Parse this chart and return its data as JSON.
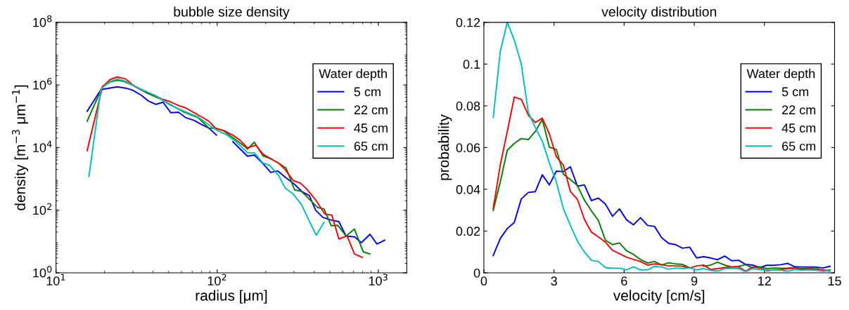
{
  "chart_data": [
    {
      "type": "line",
      "title": "bubble size density",
      "xlabel": "radius [μm]",
      "ylabel": "density [m$^{−3}$ μm$^{−1}$]",
      "legend_title": "Water depth",
      "log": "xy",
      "legend": "top right",
      "grid": false,
      "xlim": [
        10,
        1500
      ],
      "xticks": [
        {
          "value": 10,
          "label": "10$^{1}$"
        },
        {
          "value": 100,
          "label": "10$^{2}$"
        },
        {
          "value": 1000,
          "label": "10$^{3}$"
        }
      ],
      "ylim": [
        1,
        100000000
      ],
      "yticks": [
        {
          "value": 1,
          "label": "10$^{0}$"
        },
        {
          "value": 100,
          "label": "10$^{2}$"
        },
        {
          "value": 10000,
          "label": "10$^{4}$"
        },
        {
          "value": 1000000,
          "label": "10$^{6}$"
        },
        {
          "value": 100000000,
          "label": "10$^{8}$"
        }
      ],
      "series": [
        {
          "name": "5 cm",
          "color": "#0000ff",
          "x": [
            15.6,
            19.0,
            24.0,
            27.1,
            29.9,
            33.8,
            37.3,
            41.7,
            46.1,
            51.5,
            57.5,
            63.6,
            71.8,
            80.2,
            88.7,
            99,
            110,
            125,
            154,
            170,
            192,
            215,
            238,
            268,
            302,
            334,
            373,
            408,
            452,
            510,
            569,
            630,
            711,
            785,
            887,
            980,
            1094
          ],
          "values": [
            145000,
            710000,
            870000,
            790000,
            680000,
            470000,
            310000,
            240000,
            280000,
            130000,
            135000,
            91000,
            74000,
            54000,
            42000,
            25000,
            null,
            15500,
            5300,
            5800,
            3100,
            1600,
            1800,
            1070,
            670,
            400,
            293,
            100,
            59,
            48,
            43,
            15,
            14,
            9.2,
            17,
            8.3,
            11
          ]
        },
        {
          "name": "22 cm",
          "color": "#008000",
          "x": [
            15.6,
            19.4,
            21.7,
            24.0,
            26.5,
            29.9,
            36.6,
            44.7,
            50.9,
            62.3,
            76.0,
            88.7,
            98,
            110,
            128,
            150,
            154,
            170,
            192,
            217,
            240,
            268,
            302,
            334,
            376,
            420,
            460,
            510,
            560,
            630,
            711,
            805,
            887
          ],
          "values": [
            70000,
            870000,
            1260000,
            1400000,
            1300000,
            970000,
            550000,
            350000,
            240000,
            136000,
            91000,
            42000,
            41000,
            34000,
            19000,
            10300,
            8900,
            14800,
            5500,
            4300,
            3200,
            2200,
            445,
            400,
            215,
            122,
            110,
            32,
            33,
            15,
            25,
            4.7,
            4.0
          ]
        },
        {
          "name": "45 cm",
          "color": "#ff0000",
          "x": [
            15.6,
            19.4,
            21.7,
            24.0,
            27.1,
            29.9,
            33.1,
            36.6,
            41.3,
            45.6,
            50.9,
            57.5,
            63.6,
            71.8,
            80.2,
            88.7,
            98,
            110,
            125,
            139,
            154,
            174,
            192,
            217,
            240,
            264,
            297,
            328,
            363,
            408,
            465,
            515,
            569,
            640,
            711,
            795
          ],
          "values": [
            8000,
            870000,
            1500000,
            1800000,
            1550000,
            1000000,
            740000,
            580000,
            450000,
            350000,
            295000,
            220000,
            186000,
            130000,
            95000,
            70000,
            41000,
            35000,
            25000,
            17000,
            9800,
            12000,
            6200,
            4300,
            3200,
            2000,
            870,
            740,
            450,
            215,
            76,
            69,
            12,
            15,
            4.0,
            3.1
          ]
        },
        {
          "name": "65 cm",
          "color": "#00bfbf",
          "x": [
            16.0,
            19.0,
            21.4,
            24.0,
            27.1,
            29.9,
            34.1,
            41.7,
            50.9,
            62.3,
            76,
            87.7,
            100,
            114,
            128,
            150,
            154,
            170,
            192,
            212,
            240,
            264,
            297,
            334,
            369,
            412,
            460
          ],
          "values": [
            1200,
            740000,
            1260000,
            1550000,
            1300000,
            970000,
            710000,
            450000,
            230000,
            144000,
            95000,
            56000,
            35000,
            26000,
            17000,
            8000,
            6800,
            6800,
            3200,
            2700,
            1300,
            515,
            325,
            149,
            50,
            16,
            41
          ]
        }
      ]
    },
    {
      "type": "line",
      "title": "velocity distribution",
      "xlabel": "velocity [cm/s]",
      "ylabel": "probability",
      "legend_title": "Water depth",
      "legend": "top right",
      "grid": false,
      "xlim": [
        0,
        15
      ],
      "xticks": [
        0,
        3,
        6,
        9,
        12,
        15
      ],
      "ylim": [
        0,
        0.12
      ],
      "yticks": [
        0,
        0.02,
        0.04,
        0.06,
        0.08,
        0.1,
        0.12
      ],
      "x": [
        0.4,
        0.7,
        1.0,
        1.3,
        1.6,
        1.9,
        2.2,
        2.5,
        2.8,
        3.1,
        3.4,
        3.7,
        4.0,
        4.3,
        4.6,
        4.9,
        5.2,
        5.5,
        5.8,
        6.1,
        6.4,
        6.7,
        7.0,
        7.3,
        7.6,
        7.9,
        8.2,
        8.5,
        8.8,
        9.1,
        9.4,
        9.7,
        10.0,
        10.3,
        10.6,
        10.9,
        11.2,
        11.5,
        11.8,
        12.1,
        12.4,
        12.7,
        13.0,
        13.3,
        13.6,
        13.9,
        14.2,
        14.5,
        14.8
      ],
      "series": [
        {
          "name": "5 cm",
          "color": "#0000ff",
          "values": [
            0.0083,
            0.0164,
            0.0212,
            0.0241,
            0.0354,
            0.0385,
            0.0389,
            0.047,
            0.0421,
            0.0487,
            0.0485,
            0.0508,
            0.0415,
            0.0421,
            0.0346,
            0.0358,
            0.0329,
            0.0271,
            0.0306,
            0.0254,
            0.023,
            0.0264,
            0.0227,
            0.0222,
            0.0169,
            0.0141,
            0.0135,
            0.0118,
            0.0123,
            0.0071,
            0.0077,
            0.0071,
            0.0063,
            0.008,
            0.0058,
            0.006,
            0.004,
            0.0037,
            0.0025,
            0.0036,
            0.0036,
            0.0039,
            0.0045,
            0.0029,
            0.0028,
            0.0028,
            0.0028,
            0.0023,
            0.0031
          ]
        },
        {
          "name": "22 cm",
          "color": "#008000",
          "values": [
            0.0299,
            0.0435,
            0.0587,
            0.062,
            0.0643,
            0.0638,
            0.0677,
            0.0735,
            0.0602,
            0.0591,
            0.0472,
            0.0447,
            0.0418,
            0.0348,
            0.0297,
            0.025,
            0.0156,
            0.0135,
            0.0143,
            0.0106,
            0.0088,
            0.0063,
            0.0047,
            0.0054,
            0.0037,
            0.0048,
            0.0043,
            0.004,
            0.0025,
            null,
            0.0031,
            0.0037,
            0.0051,
            0.0037,
            0.0028,
            0.0031,
            0.0039,
            0.0023,
            0.0029,
            0.002,
            0.0023,
            0.0022,
            0.0023,
            0.0025,
            0.002,
            0.0023,
            0.0025,
            0.0008,
            0.0014
          ]
        },
        {
          "name": "45 cm",
          "color": "#ff0000",
          "values": [
            0.0308,
            0.0516,
            0.0677,
            0.0842,
            0.0831,
            0.0756,
            0.072,
            0.0741,
            0.0666,
            0.0556,
            0.0516,
            0.0389,
            0.0352,
            0.0256,
            0.0195,
            0.0172,
            0.0147,
            0.0108,
            0.0092,
            0.0075,
            0.0064,
            0.0054,
            0.0037,
            0.0043,
            0.0039,
            0.0033,
            0.0033,
            0.0031,
            0.0023,
            0.0033,
            0.0037,
            0.0016,
            0.002,
            0.0025,
            0.0028,
            0.0028,
            0.0008,
            0.0028,
            0.0023,
            0.001,
            0.0014,
            0.0016,
            0.002,
            0.0022,
            0.0016,
            0.002,
            0.0016,
            0.0014,
            0.0008
          ]
        },
        {
          "name": "65 cm",
          "color": "#00bfbf",
          "values": [
            0.0744,
            0.106,
            0.12,
            0.1116,
            0.1,
            0.077,
            0.0695,
            0.0631,
            0.0527,
            0.0435,
            0.0308,
            0.0227,
            0.0152,
            0.01,
            0.006,
            0.0054,
            0.0025,
            0.0022,
            0.0022,
            0.0014,
            0.0029,
            0.0014,
            0.0014,
            0.0031,
            0.0028,
            0.0017,
            0.0023,
            0.002,
            0.0023,
            0.0014,
            0.002,
            0.0012,
            0.0008,
            0.002,
            0.0022,
            0.002,
            0.0006,
            0.002,
            0.0016,
            0.0012,
            0.0014,
            0.0012,
            0.0008,
            0.0016,
            0.0012,
            0.0014,
            0.0012,
            0.0008,
            0.001
          ]
        }
      ]
    }
  ]
}
